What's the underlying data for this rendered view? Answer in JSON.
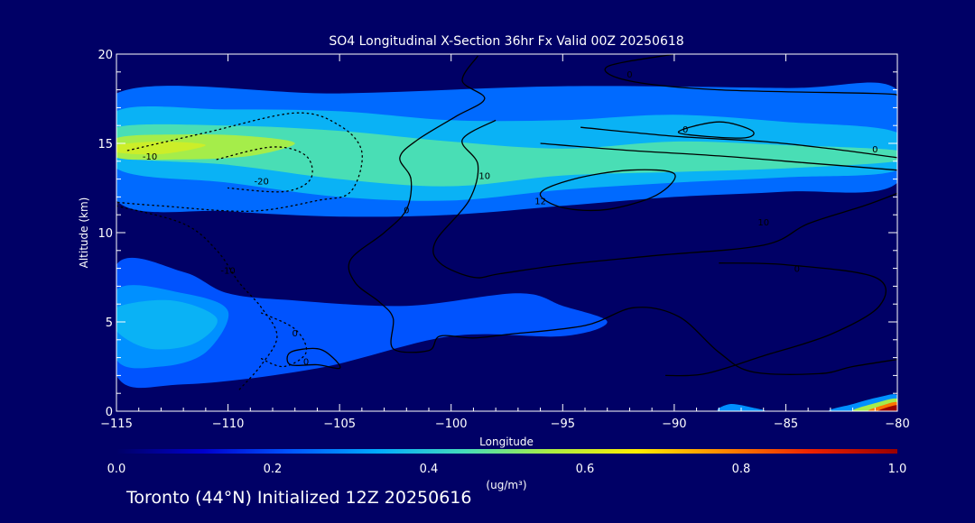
{
  "chart_data": {
    "type": "contour",
    "title": "SO4 Longitudinal X-Section 36hr  Fx Valid 00Z 20250618",
    "xlabel": "Longitude",
    "ylabel": "Altitude (km)",
    "xlim": [
      -115,
      -80
    ],
    "ylim": [
      0,
      20
    ],
    "x_ticks": [
      -115,
      -110,
      -105,
      -100,
      -95,
      -90,
      -85,
      -80
    ],
    "x_tick_labels": [
      "−115",
      "−110",
      "−105",
      "−100",
      "−95",
      "−90",
      "−85",
      "−80"
    ],
    "y_ticks": [
      0,
      5,
      10,
      15,
      20
    ],
    "y_tick_labels": [
      "0",
      "5",
      "10",
      "15",
      "20"
    ],
    "colorbar": {
      "label": "(ug/m³)",
      "range": [
        0.0,
        1.0
      ],
      "ticks": [
        0.0,
        0.2,
        0.4,
        0.6,
        0.8,
        1.0
      ],
      "tick_labels": [
        "0.0",
        "0.2",
        "0.4",
        "0.6",
        "0.8",
        "1.0"
      ],
      "colors": [
        "#000066",
        "#0000cc",
        "#0055ff",
        "#00aaff",
        "#44ddbb",
        "#aaee44",
        "#ffee00",
        "#ff8800",
        "#ee2200",
        "#990000"
      ]
    },
    "filled_field": {
      "description_free": true,
      "layers": [
        {
          "value": 0.25,
          "points": [
            [
              -115,
              17.8
            ],
            [
              -105,
              17.8
            ],
            [
              -95,
              18.2
            ],
            [
              -85,
              18.1
            ],
            [
              -80,
              18.0
            ],
            [
              -80,
              12.8
            ],
            [
              -85,
              12.3
            ],
            [
              -90,
              12.0
            ],
            [
              -95,
              11.5
            ],
            [
              -100,
              11.0
            ],
            [
              -105,
              10.9
            ],
            [
              -110,
              11.2
            ],
            [
              -115,
              11.8
            ]
          ]
        },
        {
          "value": 0.35,
          "points": [
            [
              -115,
              16.8
            ],
            [
              -110,
              16.9
            ],
            [
              -105,
              16.8
            ],
            [
              -100,
              16.3
            ],
            [
              -95,
              16.3
            ],
            [
              -90,
              16.6
            ],
            [
              -85,
              16.2
            ],
            [
              -80,
              15.6
            ],
            [
              -80,
              13.5
            ],
            [
              -85,
              13.1
            ],
            [
              -90,
              12.8
            ],
            [
              -95,
              12.4
            ],
            [
              -100,
              11.8
            ],
            [
              -105,
              12.0
            ],
            [
              -110,
              12.8
            ],
            [
              -115,
              13.6
            ]
          ]
        },
        {
          "value": 0.45,
          "points": [
            [
              -115,
              15.9
            ],
            [
              -110,
              16.0
            ],
            [
              -105,
              15.7
            ],
            [
              -100,
              15.1
            ],
            [
              -95,
              14.7
            ],
            [
              -90,
              15.1
            ],
            [
              -85,
              14.9
            ],
            [
              -80,
              14.6
            ],
            [
              -80,
              14.0
            ],
            [
              -85,
              13.6
            ],
            [
              -90,
              13.4
            ],
            [
              -95,
              13.2
            ],
            [
              -100,
              12.6
            ],
            [
              -105,
              13.0
            ],
            [
              -110,
              13.8
            ],
            [
              -115,
              14.3
            ]
          ]
        },
        {
          "value": 0.55,
          "points": [
            [
              -115,
              15.3
            ],
            [
              -112,
              15.5
            ],
            [
              -109,
              15.4
            ],
            [
              -107,
              15.0
            ],
            [
              -109,
              14.3
            ],
            [
              -112,
              14.1
            ],
            [
              -115,
              14.2
            ]
          ]
        },
        {
          "value": 0.6,
          "points": [
            [
              -115,
              14.9
            ],
            [
              -113,
              15.1
            ],
            [
              -111,
              14.9
            ],
            [
              -113,
              14.4
            ],
            [
              -115,
              14.5
            ]
          ]
        },
        {
          "value": 0.22,
          "points": [
            [
              -115,
              8.2
            ],
            [
              -112,
              7.8
            ],
            [
              -110,
              6.6
            ],
            [
              -107,
              6.2
            ],
            [
              -102,
              5.9
            ],
            [
              -97,
              6.6
            ],
            [
              -95,
              5.9
            ],
            [
              -93,
              5.0
            ],
            [
              -95,
              4.2
            ],
            [
              -100,
              4.2
            ],
            [
              -106,
              2.4
            ],
            [
              -112,
              1.5
            ],
            [
              -115,
              2.0
            ]
          ]
        },
        {
          "value": 0.3,
          "points": [
            [
              -115,
              6.8
            ],
            [
              -112,
              6.6
            ],
            [
              -110,
              5.6
            ],
            [
              -111,
              3.3
            ],
            [
              -113,
              2.5
            ],
            [
              -115,
              2.9
            ]
          ]
        },
        {
          "value": 0.35,
          "points": [
            [
              -115,
              5.8
            ],
            [
              -112.5,
              6.2
            ],
            [
              -110.5,
              5.2
            ],
            [
              -111.5,
              3.8
            ],
            [
              -113.5,
              3.5
            ],
            [
              -115,
              4.5
            ]
          ]
        },
        {
          "value": 0.3,
          "points": [
            [
              -88,
              0
            ],
            [
              -87.5,
              0.4
            ],
            [
              -86.5,
              0.2
            ],
            [
              -86,
              0
            ]
          ]
        },
        {
          "value": 0.3,
          "points": [
            [
              -83,
              0
            ],
            [
              -82,
              0.4
            ],
            [
              -80.8,
              0.8
            ],
            [
              -80,
              0.9
            ],
            [
              -80,
              0
            ]
          ]
        },
        {
          "value": 0.55,
          "points": [
            [
              -82,
              0
            ],
            [
              -81,
              0.45
            ],
            [
              -80,
              0.7
            ],
            [
              -80,
              0
            ]
          ]
        },
        {
          "value": 0.8,
          "points": [
            [
              -81.3,
              0
            ],
            [
              -80.6,
              0.35
            ],
            [
              -80,
              0.5
            ],
            [
              -80,
              0
            ]
          ]
        },
        {
          "value": 1.0,
          "points": [
            [
              -80.9,
              0
            ],
            [
              -80,
              0.35
            ],
            [
              -80,
              0
            ]
          ]
        }
      ]
    },
    "contour_lines": [
      {
        "label": "0",
        "style": "solid",
        "label_at": [
          -102,
          11.3
        ],
        "points": [
          [
            -98.8,
            19.9
          ],
          [
            -99.5,
            18.5
          ],
          [
            -98.5,
            17.5
          ],
          [
            -99.8,
            16.5
          ],
          [
            -101.5,
            15.2
          ],
          [
            -102.3,
            14.2
          ],
          [
            -101.8,
            13.0
          ],
          [
            -102,
            11.3
          ],
          [
            -103,
            10.0
          ],
          [
            -104.5,
            8.5
          ],
          [
            -104.3,
            7.2
          ],
          [
            -103.2,
            6.1
          ],
          [
            -102.6,
            5.2
          ],
          [
            -102.6,
            3.5
          ],
          [
            -101.0,
            3.4
          ],
          [
            -100.5,
            4.2
          ],
          [
            -99.0,
            4.1
          ],
          [
            -97.5,
            4.3
          ],
          [
            -94.0,
            4.8
          ],
          [
            -91.8,
            5.8
          ],
          [
            -89.8,
            5.3
          ],
          [
            -88.0,
            3.3
          ],
          [
            -86.5,
            2.2
          ],
          [
            -83.5,
            2.1
          ],
          [
            -82.0,
            2.5
          ],
          [
            -80,
            2.9
          ]
        ]
      },
      {
        "label": "10",
        "style": "solid",
        "label_at": [
          -98.5,
          13.2
        ],
        "points": [
          [
            -98.0,
            16.3
          ],
          [
            -99.5,
            15.2
          ],
          [
            -98.8,
            13.8
          ],
          [
            -99.2,
            11.8
          ],
          [
            -100.7,
            9.5
          ],
          [
            -100.5,
            8.3
          ],
          [
            -99.0,
            7.5
          ],
          [
            -97.8,
            7.7
          ],
          [
            -95.0,
            8.2
          ],
          [
            -91.0,
            8.7
          ],
          [
            -86.0,
            9.3
          ],
          [
            -84.0,
            10.5
          ],
          [
            -81.5,
            11.5
          ],
          [
            -80,
            12.2
          ]
        ]
      },
      {
        "label": "0",
        "style": "solid",
        "label_at": [
          -89.5,
          15.8
        ],
        "points": [
          [
            -89.8,
            15.6
          ],
          [
            -88.0,
            16.2
          ],
          [
            -86.5,
            15.7
          ],
          [
            -87.0,
            15.3
          ],
          [
            -89.8,
            15.6
          ]
        ]
      },
      {
        "label": "0",
        "style": "solid",
        "label_at": [
          -81.0,
          14.7
        ],
        "points": [
          [
            -94.2,
            15.9
          ],
          [
            -90.0,
            15.4
          ],
          [
            -86.0,
            15.1
          ],
          [
            -83.0,
            14.7
          ],
          [
            -80,
            14.2
          ]
        ]
      },
      {
        "label": "10",
        "style": "solid",
        "label_at": [
          -86.0,
          10.6
        ],
        "points": [
          [
            -96.0,
            15.0
          ],
          [
            -92.0,
            14.6
          ],
          [
            -88.0,
            14.3
          ],
          [
            -84.0,
            13.9
          ],
          [
            -80,
            13.5
          ]
        ]
      },
      {
        "label": "0",
        "style": "solid",
        "label_at": [
          -84.5,
          8.0
        ],
        "points": [
          [
            -88.0,
            8.3
          ],
          [
            -85.0,
            8.2
          ],
          [
            -81.0,
            7.5
          ],
          [
            -80.8,
            5.9
          ],
          [
            -83.0,
            4.3
          ],
          [
            -86.0,
            3.1
          ],
          [
            -88.6,
            2.1
          ],
          [
            -90.4,
            2.0
          ]
        ]
      },
      {
        "label": "12",
        "style": "solid",
        "label_at": [
          -96.0,
          11.8
        ],
        "points": [
          [
            -96.0,
            12.2
          ],
          [
            -94.5,
            13.0
          ],
          [
            -92.0,
            13.5
          ],
          [
            -90.0,
            13.3
          ],
          [
            -90.8,
            12.1
          ],
          [
            -93.0,
            11.3
          ],
          [
            -95.0,
            11.4
          ],
          [
            -96.0,
            12.2
          ]
        ]
      },
      {
        "label": "0",
        "style": "solid",
        "label_at": [
          -92.0,
          18.9
        ],
        "points": [
          [
            -90.0,
            20.0
          ],
          [
            -93.0,
            19.3
          ],
          [
            -92.0,
            18.5
          ],
          [
            -88.0,
            18.0
          ],
          [
            -81.0,
            17.8
          ],
          [
            -80,
            17.7
          ]
        ]
      },
      {
        "label": "-10",
        "style": "dotted",
        "label_at": [
          -113.5,
          14.3
        ],
        "points": [
          [
            -114.5,
            14.6
          ],
          [
            -111.0,
            15.6
          ],
          [
            -107.0,
            16.7
          ],
          [
            -105.0,
            16.0
          ],
          [
            -104.0,
            14.5
          ],
          [
            -104.5,
            12.3
          ],
          [
            -106.0,
            11.8
          ],
          [
            -109.0,
            11.2
          ],
          [
            -113.0,
            11.5
          ],
          [
            -115,
            11.7
          ]
        ]
      },
      {
        "label": "-20",
        "style": "dotted",
        "label_at": [
          -108.5,
          12.9
        ],
        "points": [
          [
            -110.5,
            14.1
          ],
          [
            -108.0,
            14.8
          ],
          [
            -106.5,
            14.3
          ],
          [
            -106.3,
            13.0
          ],
          [
            -107.5,
            12.3
          ],
          [
            -110.0,
            12.5
          ]
        ]
      },
      {
        "label": "-10",
        "style": "dotted",
        "label_at": [
          -110.0,
          7.9
        ],
        "points": [
          [
            -115,
            11.5
          ],
          [
            -112.0,
            10.5
          ],
          [
            -110.5,
            9.0
          ],
          [
            -109.5,
            7.2
          ],
          [
            -108.5,
            5.8
          ],
          [
            -107.8,
            4.2
          ],
          [
            -108.5,
            2.6
          ],
          [
            -109.5,
            1.2
          ]
        ]
      },
      {
        "label": "0",
        "style": "dotted",
        "label_at": [
          -107.0,
          4.4
        ],
        "points": [
          [
            -108.5,
            5.5
          ],
          [
            -107.0,
            4.6
          ],
          [
            -106.5,
            3.3
          ],
          [
            -107.5,
            2.5
          ],
          [
            -108.6,
            3.0
          ]
        ]
      },
      {
        "label": "0",
        "style": "solid",
        "label_at": [
          -106.5,
          2.8
        ],
        "points": [
          [
            -107.2,
            3.3
          ],
          [
            -106.0,
            3.5
          ],
          [
            -105.3,
            3.0
          ],
          [
            -105.0,
            2.4
          ],
          [
            -106.0,
            2.6
          ],
          [
            -107.2,
            2.6
          ],
          [
            -107.2,
            3.3
          ]
        ]
      }
    ]
  },
  "footer": {
    "text": "Toronto (44°N) Initialized 12Z 20250616"
  }
}
